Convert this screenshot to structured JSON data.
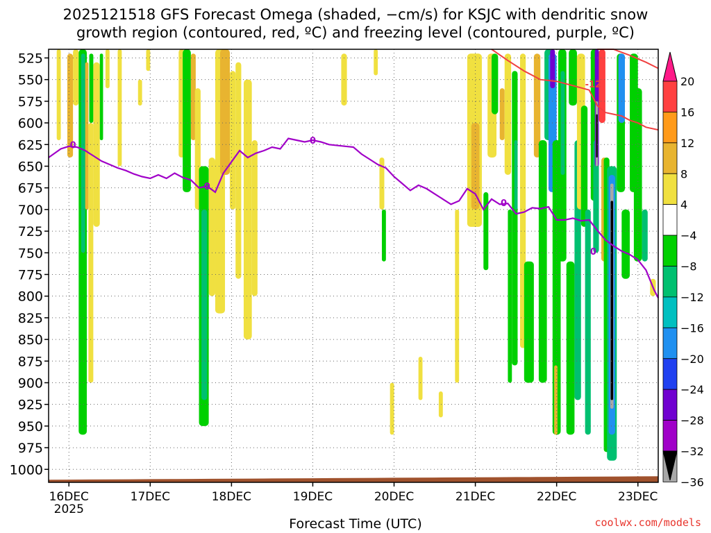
{
  "title_line1": "2025121518 GFS Forecast Omega (shaded, −cm/s) for KSJC with dendritic snow",
  "title_line2": "growth region (contoured, red, ºC) and freezing level (contoured, purple, ºC)",
  "credit": "coolwx.com/models",
  "chart_data": {
    "type": "heatmap",
    "title": "2025121518 GFS Forecast Omega (shaded, −cm/s) for KSJC with dendritic snow growth region (contoured, red, ºC) and freezing level (contoured, purple, ºC)",
    "xlabel": "Forecast Time (UTC)",
    "ylabel": "",
    "x_ticks": [
      "16DEC",
      "17DEC",
      "18DEC",
      "19DEC",
      "20DEC",
      "21DEC",
      "22DEC",
      "23DEC"
    ],
    "x_tick_sub": "2025",
    "x_range_days": [
      -0.25,
      7.25
    ],
    "y_ticks": [
      525,
      550,
      575,
      600,
      625,
      650,
      675,
      700,
      725,
      750,
      775,
      800,
      825,
      850,
      875,
      900,
      925,
      950,
      975,
      1000
    ],
    "y_range_hpa": [
      515,
      1015
    ],
    "grid": true,
    "colorbar": {
      "labels": [
        "20",
        "16",
        "12",
        "8",
        "4",
        "−4",
        "−8",
        "−12",
        "−16",
        "−20",
        "−24",
        "−28",
        "−32",
        "−36"
      ],
      "colors": [
        "#ff1a88",
        "#ff4040",
        "#ff9a1a",
        "#e8b430",
        "#f0e040",
        "#ffffff",
        "#00d000",
        "#00c070",
        "#00c0c0",
        "#2090f0",
        "#2040f0",
        "#7000d0",
        "#a000c8",
        "#a8a8a8",
        "#000000"
      ]
    },
    "contours": {
      "freezing_level_label": "0",
      "dgz_label": "-12",
      "freezing_level_color": "#a000c8",
      "dgz_color": "#f04040",
      "freezing_level_hpa": [
        [
          -0.25,
          640
        ],
        [
          -0.1,
          630
        ],
        [
          0.0,
          627
        ],
        [
          0.1,
          628
        ],
        [
          0.2,
          632
        ],
        [
          0.3,
          638
        ],
        [
          0.4,
          644
        ],
        [
          0.5,
          648
        ],
        [
          0.6,
          652
        ],
        [
          0.7,
          655
        ],
        [
          0.8,
          659
        ],
        [
          0.9,
          662
        ],
        [
          1.0,
          664
        ],
        [
          1.1,
          660
        ],
        [
          1.2,
          664
        ],
        [
          1.3,
          658
        ],
        [
          1.4,
          663
        ],
        [
          1.5,
          666
        ],
        [
          1.6,
          675
        ],
        [
          1.7,
          673
        ],
        [
          1.8,
          680
        ],
        [
          1.9,
          658
        ],
        [
          2.0,
          645
        ],
        [
          2.1,
          632
        ],
        [
          2.2,
          640
        ],
        [
          2.3,
          635
        ],
        [
          2.4,
          632
        ],
        [
          2.5,
          628
        ],
        [
          2.6,
          630
        ],
        [
          2.7,
          618
        ],
        [
          2.8,
          620
        ],
        [
          2.9,
          622
        ],
        [
          3.0,
          620
        ],
        [
          3.1,
          622
        ],
        [
          3.2,
          625
        ],
        [
          3.4,
          627
        ],
        [
          3.5,
          628
        ],
        [
          3.6,
          636
        ],
        [
          3.7,
          642
        ],
        [
          3.8,
          648
        ],
        [
          3.9,
          652
        ],
        [
          4.0,
          662
        ],
        [
          4.1,
          670
        ],
        [
          4.2,
          678
        ],
        [
          4.3,
          672
        ],
        [
          4.4,
          676
        ],
        [
          4.5,
          682
        ],
        [
          4.6,
          688
        ],
        [
          4.7,
          694
        ],
        [
          4.8,
          690
        ],
        [
          4.9,
          676
        ],
        [
          5.0,
          682
        ],
        [
          5.1,
          700
        ],
        [
          5.2,
          688
        ],
        [
          5.3,
          694
        ],
        [
          5.4,
          693
        ],
        [
          5.5,
          705
        ],
        [
          5.6,
          703
        ],
        [
          5.7,
          698
        ],
        [
          5.8,
          699
        ],
        [
          5.9,
          697
        ],
        [
          6.0,
          712
        ],
        [
          6.1,
          712
        ],
        [
          6.2,
          710
        ],
        [
          6.3,
          713
        ],
        [
          6.4,
          712
        ],
        [
          6.5,
          724
        ],
        [
          6.6,
          735
        ],
        [
          6.7,
          742
        ],
        [
          6.8,
          748
        ],
        [
          6.9,
          752
        ],
        [
          7.0,
          758
        ],
        [
          7.1,
          770
        ],
        [
          7.2,
          793
        ],
        [
          7.25,
          802
        ]
      ],
      "dgz_hpa": [
        [
          5.2,
          512
        ],
        [
          5.4,
          528
        ],
        [
          5.6,
          540
        ],
        [
          5.8,
          550
        ],
        [
          6.0,
          552
        ],
        [
          6.2,
          557
        ],
        [
          6.4,
          562
        ],
        [
          6.5,
          580
        ],
        [
          6.6,
          588
        ],
        [
          6.7,
          590
        ],
        [
          6.8,
          592
        ],
        [
          6.9,
          597
        ],
        [
          7.0,
          600
        ],
        [
          7.1,
          605
        ],
        [
          7.25,
          608
        ]
      ],
      "dgz_hpa_upper": [
        [
          6.5,
          512
        ],
        [
          6.7,
          515
        ],
        [
          6.9,
          522
        ],
        [
          7.1,
          530
        ],
        [
          7.25,
          537
        ]
      ]
    },
    "shading": [
      {
        "x": [
          -0.15,
          -0.1
        ],
        "p": [
          515,
          620
        ],
        "c": "#f0e040"
      },
      {
        "x": [
          -0.02,
          0.05
        ],
        "p": [
          520,
          640
        ],
        "c": "#e8b430"
      },
      {
        "x": [
          0.05,
          0.12
        ],
        "p": [
          515,
          580
        ],
        "c": "#f0e040"
      },
      {
        "x": [
          0.12,
          0.22
        ],
        "p": [
          515,
          960
        ],
        "c": "#00d000"
      },
      {
        "x": [
          0.15,
          0.2
        ],
        "p": [
          520,
          750
        ],
        "c": "#00c070"
      },
      {
        "x": [
          0.2,
          0.24
        ],
        "p": [
          530,
          700
        ],
        "c": "#e8b430"
      },
      {
        "x": [
          0.24,
          0.3
        ],
        "p": [
          600,
          900
        ],
        "c": "#f0e040"
      },
      {
        "x": [
          0.25,
          0.3
        ],
        "p": [
          520,
          600
        ],
        "c": "#00d000"
      },
      {
        "x": [
          0.3,
          0.38
        ],
        "p": [
          530,
          720
        ],
        "c": "#f0e040"
      },
      {
        "x": [
          0.38,
          0.42
        ],
        "p": [
          520,
          620
        ],
        "c": "#00d000"
      },
      {
        "x": [
          0.45,
          0.5
        ],
        "p": [
          515,
          560
        ],
        "c": "#f0e040"
      },
      {
        "x": [
          0.6,
          0.65
        ],
        "p": [
          515,
          650
        ],
        "c": "#f0e040"
      },
      {
        "x": [
          0.85,
          0.9
        ],
        "p": [
          550,
          580
        ],
        "c": "#f0e040"
      },
      {
        "x": [
          0.95,
          1.0
        ],
        "p": [
          515,
          540
        ],
        "c": "#f0e040"
      },
      {
        "x": [
          1.35,
          1.42
        ],
        "p": [
          515,
          640
        ],
        "c": "#f0e040"
      },
      {
        "x": [
          1.4,
          1.5
        ],
        "p": [
          515,
          680
        ],
        "c": "#00d000"
      },
      {
        "x": [
          1.5,
          1.56
        ],
        "p": [
          520,
          620
        ],
        "c": "#e8b430"
      },
      {
        "x": [
          1.55,
          1.62
        ],
        "p": [
          560,
          700
        ],
        "c": "#f0e040"
      },
      {
        "x": [
          1.6,
          1.72
        ],
        "p": [
          650,
          950
        ],
        "c": "#00d000"
      },
      {
        "x": [
          1.63,
          1.7
        ],
        "p": [
          700,
          920
        ],
        "c": "#00c070"
      },
      {
        "x": [
          1.72,
          1.8
        ],
        "p": [
          640,
          800
        ],
        "c": "#f0e040"
      },
      {
        "x": [
          1.8,
          1.92
        ],
        "p": [
          515,
          820
        ],
        "c": "#f0e040"
      },
      {
        "x": [
          1.86,
          1.98
        ],
        "p": [
          515,
          660
        ],
        "c": "#e8b430"
      },
      {
        "x": [
          1.98,
          2.05
        ],
        "p": [
          540,
          700
        ],
        "c": "#f0e040"
      },
      {
        "x": [
          2.05,
          2.12
        ],
        "p": [
          530,
          780
        ],
        "c": "#f0e040"
      },
      {
        "x": [
          2.15,
          2.25
        ],
        "p": [
          550,
          850
        ],
        "c": "#f0e040"
      },
      {
        "x": [
          2.25,
          2.32
        ],
        "p": [
          620,
          800
        ],
        "c": "#f0e040"
      },
      {
        "x": [
          3.35,
          3.42
        ],
        "p": [
          520,
          580
        ],
        "c": "#f0e040"
      },
      {
        "x": [
          3.75,
          3.8
        ],
        "p": [
          515,
          545
        ],
        "c": "#f0e040"
      },
      {
        "x": [
          3.82,
          3.88
        ],
        "p": [
          640,
          700
        ],
        "c": "#f0e040"
      },
      {
        "x": [
          3.85,
          3.9
        ],
        "p": [
          700,
          760
        ],
        "c": "#00d000"
      },
      {
        "x": [
          3.95,
          4.0
        ],
        "p": [
          900,
          960
        ],
        "c": "#f0e040"
      },
      {
        "x": [
          4.3,
          4.35
        ],
        "p": [
          870,
          920
        ],
        "c": "#f0e040"
      },
      {
        "x": [
          4.55,
          4.6
        ],
        "p": [
          910,
          940
        ],
        "c": "#f0e040"
      },
      {
        "x": [
          4.75,
          4.8
        ],
        "p": [
          700,
          900
        ],
        "c": "#f0e040"
      },
      {
        "x": [
          4.9,
          5.08
        ],
        "p": [
          520,
          720
        ],
        "c": "#f0e040"
      },
      {
        "x": [
          4.95,
          5.05
        ],
        "p": [
          600,
          700
        ],
        "c": "#e8b430"
      },
      {
        "x": [
          5.1,
          5.16
        ],
        "p": [
          680,
          770
        ],
        "c": "#00d000"
      },
      {
        "x": [
          5.15,
          5.26
        ],
        "p": [
          520,
          640
        ],
        "c": "#f0e040"
      },
      {
        "x": [
          5.2,
          5.28
        ],
        "p": [
          520,
          590
        ],
        "c": "#00d000"
      },
      {
        "x": [
          5.3,
          5.36
        ],
        "p": [
          560,
          620
        ],
        "c": "#e8b430"
      },
      {
        "x": [
          5.36,
          5.44
        ],
        "p": [
          520,
          660
        ],
        "c": "#f0e040"
      },
      {
        "x": [
          5.4,
          5.45
        ],
        "p": [
          700,
          900
        ],
        "c": "#00d000"
      },
      {
        "x": [
          5.45,
          5.52
        ],
        "p": [
          540,
          880
        ],
        "c": "#00d000"
      },
      {
        "x": [
          5.48,
          5.52
        ],
        "p": [
          620,
          700
        ],
        "c": "#00c070"
      },
      {
        "x": [
          5.55,
          5.62
        ],
        "p": [
          520,
          860
        ],
        "c": "#f0e040"
      },
      {
        "x": [
          5.6,
          5.72
        ],
        "p": [
          760,
          900
        ],
        "c": "#00d000"
      },
      {
        "x": [
          5.72,
          5.8
        ],
        "p": [
          520,
          640
        ],
        "c": "#e8b430"
      },
      {
        "x": [
          5.78,
          5.88
        ],
        "p": [
          620,
          900
        ],
        "c": "#00d000"
      },
      {
        "x": [
          5.85,
          5.95
        ],
        "p": [
          515,
          620
        ],
        "c": "#00c070"
      },
      {
        "x": [
          5.9,
          6.0
        ],
        "p": [
          520,
          680
        ],
        "c": "#2090f0"
      },
      {
        "x": [
          5.92,
          5.98
        ],
        "p": [
          515,
          560
        ],
        "c": "#7000d0"
      },
      {
        "x": [
          5.95,
          6.05
        ],
        "p": [
          620,
          960
        ],
        "c": "#00d000"
      },
      {
        "x": [
          5.97,
          6.01
        ],
        "p": [
          880,
          960
        ],
        "c": "#e8b430"
      },
      {
        "x": [
          6.02,
          6.12
        ],
        "p": [
          515,
          760
        ],
        "c": "#00d000"
      },
      {
        "x": [
          6.05,
          6.1
        ],
        "p": [
          540,
          660
        ],
        "c": "#00c070"
      },
      {
        "x": [
          6.12,
          6.22
        ],
        "p": [
          760,
          960
        ],
        "c": "#00d000"
      },
      {
        "x": [
          6.15,
          6.25
        ],
        "p": [
          515,
          580
        ],
        "c": "#00d000"
      },
      {
        "x": [
          6.22,
          6.3
        ],
        "p": [
          620,
          920
        ],
        "c": "#00c070"
      },
      {
        "x": [
          6.25,
          6.35
        ],
        "p": [
          520,
          700
        ],
        "c": "#f0e040"
      },
      {
        "x": [
          6.3,
          6.38
        ],
        "p": [
          580,
          720
        ],
        "c": "#00d000"
      },
      {
        "x": [
          6.35,
          6.42
        ],
        "p": [
          700,
          960
        ],
        "c": "#00c070"
      },
      {
        "x": [
          6.42,
          6.5
        ],
        "p": [
          515,
          690
        ],
        "c": "#00d000"
      },
      {
        "x": [
          6.45,
          6.52
        ],
        "p": [
          620,
          750
        ],
        "c": "#00c070"
      },
      {
        "x": [
          6.47,
          6.52
        ],
        "p": [
          515,
          650
        ],
        "c": "#7000d0"
      },
      {
        "x": [
          6.48,
          6.51
        ],
        "p": [
          575,
          650
        ],
        "c": "#a8a8a8"
      },
      {
        "x": [
          6.485,
          6.505
        ],
        "p": [
          590,
          640
        ],
        "c": "#000000"
      },
      {
        "x": [
          6.52,
          6.6
        ],
        "p": [
          515,
          600
        ],
        "c": "#ff4040"
      },
      {
        "x": [
          6.55,
          6.62
        ],
        "p": [
          640,
          760
        ],
        "c": "#e8b430"
      },
      {
        "x": [
          6.58,
          6.65
        ],
        "p": [
          640,
          980
        ],
        "c": "#00d000"
      },
      {
        "x": [
          6.62,
          6.74
        ],
        "p": [
          650,
          990
        ],
        "c": "#00c070"
      },
      {
        "x": [
          6.64,
          6.72
        ],
        "p": [
          660,
          960
        ],
        "c": "#2090f0"
      },
      {
        "x": [
          6.66,
          6.7
        ],
        "p": [
          670,
          930
        ],
        "c": "#a8a8a8"
      },
      {
        "x": [
          6.665,
          6.695
        ],
        "p": [
          690,
          920
        ],
        "c": "#000000"
      },
      {
        "x": [
          6.74,
          6.84
        ],
        "p": [
          520,
          680
        ],
        "c": "#00d000"
      },
      {
        "x": [
          6.76,
          6.84
        ],
        "p": [
          520,
          600
        ],
        "c": "#2090f0"
      },
      {
        "x": [
          6.8,
          6.9
        ],
        "p": [
          700,
          780
        ],
        "c": "#00d000"
      },
      {
        "x": [
          6.9,
          7.0
        ],
        "p": [
          520,
          680
        ],
        "c": "#00d000"
      },
      {
        "x": [
          6.95,
          7.05
        ],
        "p": [
          560,
          760
        ],
        "c": "#00d000"
      },
      {
        "x": [
          7.05,
          7.12
        ],
        "p": [
          700,
          760
        ],
        "c": "#00c070"
      },
      {
        "x": [
          7.15,
          7.22
        ],
        "p": [
          780,
          800
        ],
        "c": "#f0e040"
      }
    ],
    "ground_color": "#a0522d"
  }
}
